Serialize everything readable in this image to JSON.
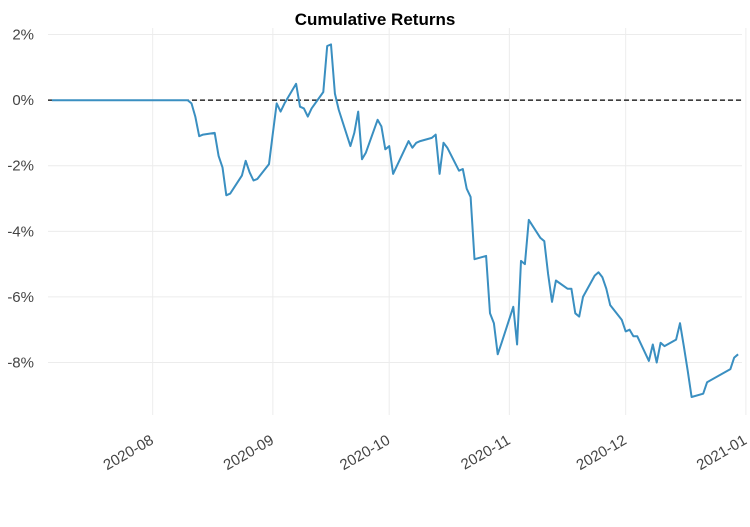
{
  "chart_data": {
    "type": "line",
    "title": "Cumulative Returns",
    "xlabel": "",
    "ylabel": "",
    "x_start": "2020-07-05",
    "x_end": "2020-12-31",
    "ylim": [
      -9.6,
      2.2
    ],
    "yticks": [
      2,
      0,
      -2,
      -4,
      -6,
      -8
    ],
    "ytick_labels": [
      "2%",
      "0%",
      "-2%",
      "-4%",
      "-6%",
      "-8%"
    ],
    "xticks": [
      "2020-08-01",
      "2020-09-01",
      "2020-10-01",
      "2020-11-01",
      "2020-12-01",
      "2021-01-01"
    ],
    "xtick_labels": [
      "2020-08",
      "2020-09",
      "2020-10",
      "2020-11",
      "2020-12",
      "2021-01"
    ],
    "reference_line": 0,
    "grid": true,
    "series": [
      {
        "color": "#3a8fc1",
        "x": [
          "2020-07-06",
          "2020-07-13",
          "2020-07-20",
          "2020-07-27",
          "2020-08-03",
          "2020-08-10",
          "2020-08-11",
          "2020-08-12",
          "2020-08-13",
          "2020-08-14",
          "2020-08-17",
          "2020-08-18",
          "2020-08-19",
          "2020-08-20",
          "2020-08-21",
          "2020-08-24",
          "2020-08-25",
          "2020-08-26",
          "2020-08-27",
          "2020-08-28",
          "2020-08-31",
          "2020-09-01",
          "2020-09-02",
          "2020-09-03",
          "2020-09-04",
          "2020-09-07",
          "2020-09-08",
          "2020-09-09",
          "2020-09-10",
          "2020-09-11",
          "2020-09-14",
          "2020-09-15",
          "2020-09-16",
          "2020-09-17",
          "2020-09-18",
          "2020-09-21",
          "2020-09-22",
          "2020-09-23",
          "2020-09-24",
          "2020-09-25",
          "2020-09-28",
          "2020-09-29",
          "2020-09-30",
          "2020-10-01",
          "2020-10-02",
          "2020-10-05",
          "2020-10-06",
          "2020-10-07",
          "2020-10-08",
          "2020-10-09",
          "2020-10-12",
          "2020-10-13",
          "2020-10-14",
          "2020-10-15",
          "2020-10-16",
          "2020-10-19",
          "2020-10-20",
          "2020-10-21",
          "2020-10-22",
          "2020-10-23",
          "2020-10-26",
          "2020-10-27",
          "2020-10-28",
          "2020-10-29",
          "2020-10-30",
          "2020-11-02",
          "2020-11-03",
          "2020-11-04",
          "2020-11-05",
          "2020-11-06",
          "2020-11-09",
          "2020-11-10",
          "2020-11-11",
          "2020-11-12",
          "2020-11-13",
          "2020-11-16",
          "2020-11-17",
          "2020-11-18",
          "2020-11-19",
          "2020-11-20",
          "2020-11-23",
          "2020-11-24",
          "2020-11-25",
          "2020-11-26",
          "2020-11-27",
          "2020-11-30",
          "2020-12-01",
          "2020-12-02",
          "2020-12-03",
          "2020-12-04",
          "2020-12-07",
          "2020-12-08",
          "2020-12-09",
          "2020-12-10",
          "2020-12-11",
          "2020-12-14",
          "2020-12-15",
          "2020-12-16",
          "2020-12-17",
          "2020-12-18",
          "2020-12-21",
          "2020-12-22",
          "2020-12-28",
          "2020-12-29",
          "2020-12-30"
        ],
        "y": [
          0,
          0,
          0,
          0,
          0,
          0,
          -0.1,
          -0.5,
          -1.1,
          -1.05,
          -1.0,
          -1.7,
          -2.05,
          -2.9,
          -2.85,
          -2.3,
          -1.85,
          -2.2,
          -2.45,
          -2.4,
          -1.95,
          -1.0,
          -0.1,
          -0.35,
          -0.1,
          0.5,
          -0.2,
          -0.25,
          -0.5,
          -0.25,
          0.25,
          1.65,
          1.7,
          0.2,
          -0.3,
          -1.4,
          -1.0,
          -0.35,
          -1.8,
          -1.6,
          -0.6,
          -0.8,
          -1.5,
          -1.4,
          -2.25,
          -1.5,
          -1.25,
          -1.45,
          -1.3,
          -1.25,
          -1.15,
          -1.05,
          -2.25,
          -1.3,
          -1.45,
          -2.15,
          -2.1,
          -2.7,
          -2.95,
          -4.85,
          -4.75,
          -6.5,
          -6.8,
          -7.75,
          -7.4,
          -6.3,
          -7.45,
          -4.9,
          -5.0,
          -3.65,
          -4.2,
          -4.3,
          -5.3,
          -6.15,
          -5.5,
          -5.75,
          -5.75,
          -6.5,
          -6.6,
          -6.0,
          -5.35,
          -5.25,
          -5.4,
          -5.75,
          -6.25,
          -6.7,
          -7.05,
          -7.0,
          -7.2,
          -7.2,
          -7.95,
          -7.45,
          -8.0,
          -7.4,
          -7.5,
          -7.3,
          -6.8,
          -7.5,
          -8.25,
          -9.05,
          -8.95,
          -8.6,
          -8.2,
          -7.85,
          -7.75
        ]
      }
    ]
  }
}
